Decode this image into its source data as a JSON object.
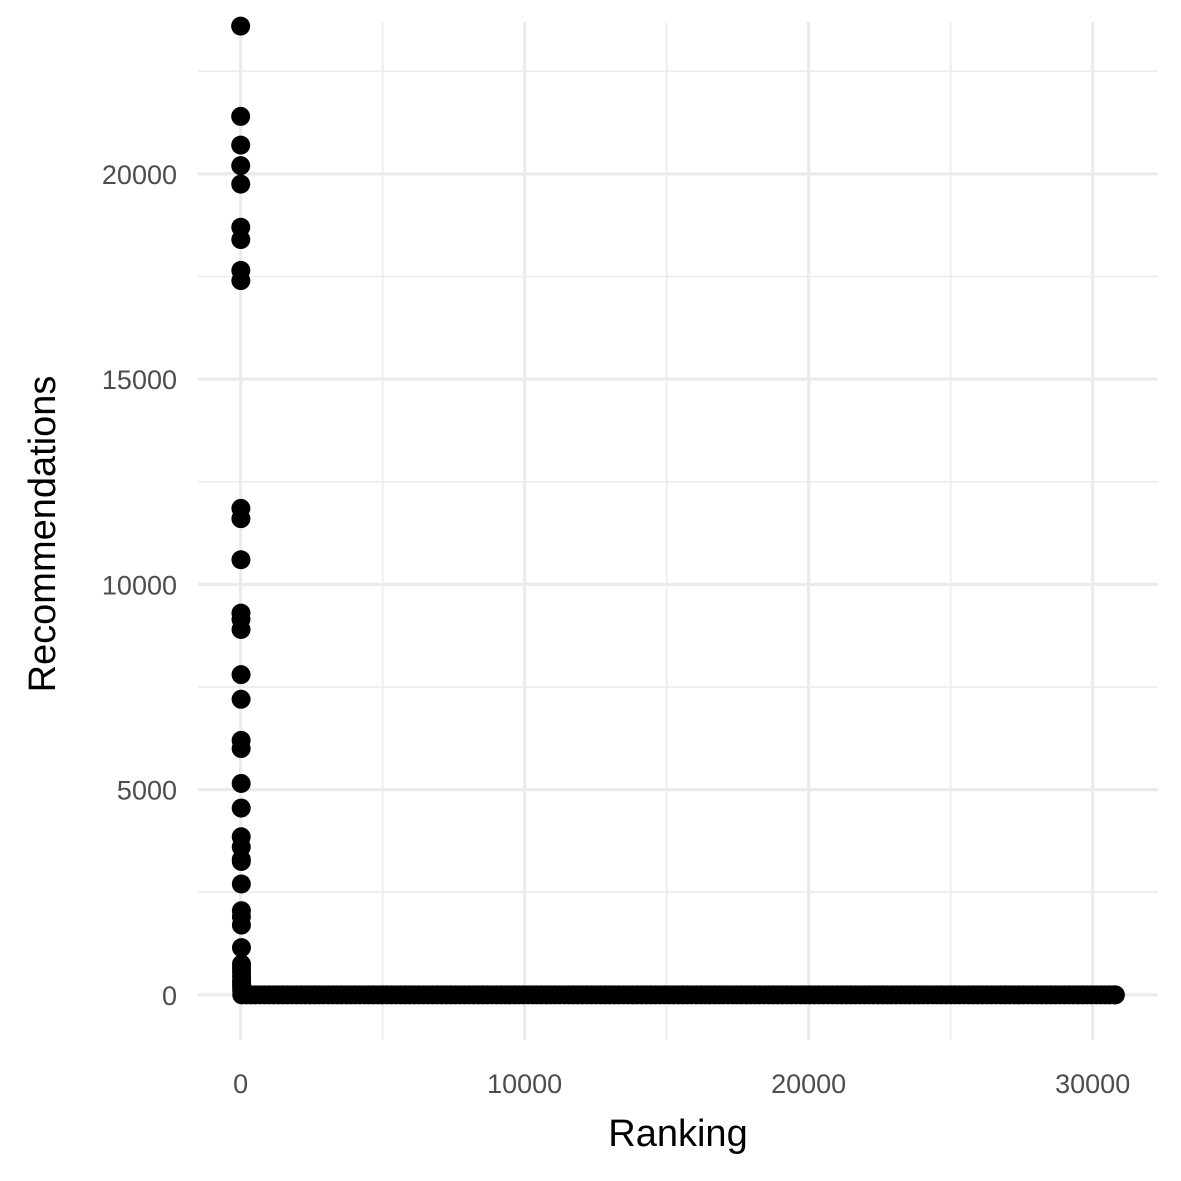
{
  "chart_data": {
    "type": "scatter",
    "title": "",
    "xlabel": "Ranking",
    "ylabel": "Recommendations",
    "xlim": [
      -1500,
      32300
    ],
    "ylim": [
      -1100,
      23700
    ],
    "x_ticks": [
      0,
      10000,
      20000,
      30000
    ],
    "x_tick_labels": [
      "0",
      "10000",
      "20000",
      "30000"
    ],
    "y_ticks": [
      0,
      5000,
      10000,
      15000,
      20000
    ],
    "y_tick_labels": [
      "0",
      "5000",
      "10000",
      "15000",
      "20000"
    ],
    "grid": true,
    "legend": "none",
    "point_color": "#000000",
    "points": [
      {
        "x": 1,
        "y": 23600
      },
      {
        "x": 2,
        "y": 21400
      },
      {
        "x": 3,
        "y": 20700
      },
      {
        "x": 4,
        "y": 20200
      },
      {
        "x": 5,
        "y": 19750
      },
      {
        "x": 6,
        "y": 18700
      },
      {
        "x": 7,
        "y": 18400
      },
      {
        "x": 8,
        "y": 17650
      },
      {
        "x": 9,
        "y": 17400
      },
      {
        "x": 10,
        "y": 11850
      },
      {
        "x": 11,
        "y": 11600
      },
      {
        "x": 12,
        "y": 10600
      },
      {
        "x": 13,
        "y": 9300
      },
      {
        "x": 14,
        "y": 9150
      },
      {
        "x": 15,
        "y": 8900
      },
      {
        "x": 16,
        "y": 7800
      },
      {
        "x": 17,
        "y": 7200
      },
      {
        "x": 18,
        "y": 6200
      },
      {
        "x": 19,
        "y": 6000
      },
      {
        "x": 20,
        "y": 5150
      },
      {
        "x": 21,
        "y": 4550
      },
      {
        "x": 22,
        "y": 3850
      },
      {
        "x": 23,
        "y": 3600
      },
      {
        "x": 24,
        "y": 3300
      },
      {
        "x": 25,
        "y": 3250
      },
      {
        "x": 26,
        "y": 2700
      },
      {
        "x": 27,
        "y": 2050
      },
      {
        "x": 28,
        "y": 1900
      },
      {
        "x": 29,
        "y": 1700
      },
      {
        "x": 30,
        "y": 1150
      },
      {
        "x": 31,
        "y": 750
      },
      {
        "x": 32,
        "y": 650
      },
      {
        "x": 33,
        "y": 550
      },
      {
        "x": 34,
        "y": 450
      },
      {
        "x": 35,
        "y": 350
      },
      {
        "x": 36,
        "y": 300
      },
      {
        "x": 37,
        "y": 250
      },
      {
        "x": 38,
        "y": 200
      },
      {
        "x": 39,
        "y": 150
      },
      {
        "x": 40,
        "y": 100
      }
    ],
    "baseline_series": {
      "x_start": 40,
      "x_end": 30800,
      "step": 160,
      "y": 0
    }
  }
}
